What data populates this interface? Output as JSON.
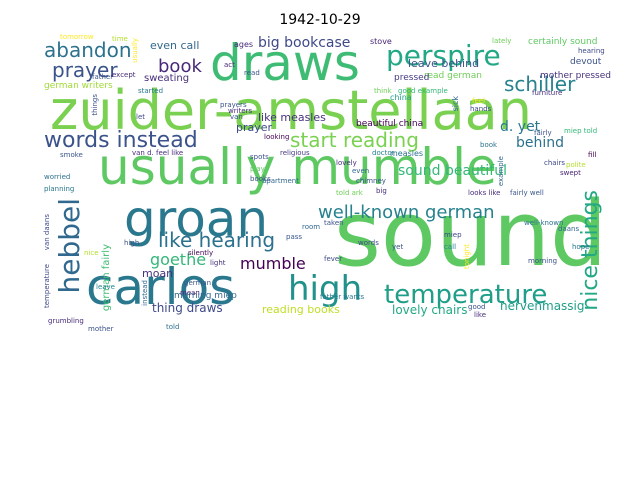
{
  "title": "1942-10-29",
  "words": [
    {
      "text": "sound",
      "color": "#5ec962",
      "vertical": false
    },
    {
      "text": "zuider-amstellaan",
      "color": "#7ad151",
      "vertical": false
    },
    {
      "text": "usually mumble",
      "color": "#5ec962",
      "vertical": false
    },
    {
      "text": "carlos",
      "color": "#2a788e",
      "vertical": false
    },
    {
      "text": "groan",
      "color": "#2a788e",
      "vertical": false
    },
    {
      "text": "draws",
      "color": "#3fbc73",
      "vertical": false
    },
    {
      "text": "high",
      "color": "#21918c",
      "vertical": false
    },
    {
      "text": "temperature",
      "color": "#1f9e89",
      "vertical": false
    },
    {
      "text": "perspire",
      "color": "#22a884",
      "vertical": false
    },
    {
      "text": "words instead",
      "color": "#3b528b",
      "vertical": false
    },
    {
      "text": "hebbel",
      "color": "#31688e",
      "vertical": true
    },
    {
      "text": "start reading",
      "color": "#7ad151",
      "vertical": false
    },
    {
      "text": "well-known german",
      "color": "#26828e",
      "vertical": false
    },
    {
      "text": "like hearing",
      "color": "#2c728e",
      "vertical": false
    },
    {
      "text": "nice things",
      "color": "#22a884",
      "vertical": true
    },
    {
      "text": "abandon",
      "color": "#2c728e",
      "vertical": false
    },
    {
      "text": "prayer",
      "color": "#3b528b",
      "vertical": false
    },
    {
      "text": "book",
      "color": "#482878",
      "vertical": false
    },
    {
      "text": "schiller",
      "color": "#26828e",
      "vertical": false
    },
    {
      "text": "goethe",
      "color": "#35b779",
      "vertical": false
    },
    {
      "text": "mumble",
      "color": "#440154",
      "vertical": false
    },
    {
      "text": "big bookcase",
      "color": "#3e4989",
      "vertical": false
    },
    {
      "text": "sound beautiful",
      "color": "#35b779",
      "vertical": false
    },
    {
      "text": "behind",
      "color": "#2c728e",
      "vertical": false
    },
    {
      "text": "d. yet",
      "color": "#2a788e",
      "vertical": false
    },
    {
      "text": "nervenmassig",
      "color": "#1f9e89",
      "vertical": false
    },
    {
      "text": "lovely chairs",
      "color": "#22a884",
      "vertical": false
    },
    {
      "text": "thing draws",
      "color": "#3e4989",
      "vertical": false
    },
    {
      "text": "reading books",
      "color": "#bddf26",
      "vertical": false
    },
    {
      "text": "even call",
      "color": "#31688e",
      "vertical": false
    },
    {
      "text": "leave behind",
      "color": "#3b528b",
      "vertical": false
    },
    {
      "text": "certainly sound",
      "color": "#5ec962",
      "vertical": false
    },
    {
      "text": "like measles",
      "color": "#46327e",
      "vertical": false
    },
    {
      "text": "moan",
      "color": "#46327e",
      "vertical": false
    },
    {
      "text": "prayer",
      "color": "#3e4989",
      "vertical": false
    },
    {
      "text": "read german",
      "color": "#6ece58",
      "vertical": false
    },
    {
      "text": "german writers",
      "color": "#a0da39",
      "vertical": false
    },
    {
      "text": "sweating",
      "color": "#472d7b",
      "vertical": false
    },
    {
      "text": "beautiful china",
      "color": "#440154",
      "vertical": false
    },
    {
      "text": "german fairly",
      "color": "#3fbc73",
      "vertical": true
    },
    {
      "text": "devout",
      "color": "#3b528b",
      "vertical": false
    },
    {
      "text": "pressed",
      "color": "#443983",
      "vertical": false
    },
    {
      "text": "morning miep",
      "color": "#31688e",
      "vertical": false
    },
    {
      "text": "mother pressed",
      "color": "#46327e",
      "vertical": false
    },
    {
      "text": "stove",
      "color": "#482475",
      "vertical": false
    },
    {
      "text": "ages",
      "color": "#482878",
      "vertical": false
    },
    {
      "text": "lately",
      "color": "#6ece58",
      "vertical": false
    },
    {
      "text": "hearing",
      "color": "#3e4989",
      "vertical": false
    },
    {
      "text": "time",
      "color": "#b5de2b",
      "vertical": false
    },
    {
      "text": "tomorrow",
      "color": "#fde725",
      "vertical": false
    },
    {
      "text": "father",
      "color": "#3b528b",
      "vertical": false
    },
    {
      "text": "except",
      "color": "#472d7b",
      "vertical": false
    },
    {
      "text": "read",
      "color": "#39568c",
      "vertical": false
    },
    {
      "text": "started",
      "color": "#2a788e",
      "vertical": false
    },
    {
      "text": "prayers",
      "color": "#3b528b",
      "vertical": false
    },
    {
      "text": "think",
      "color": "#6ece58",
      "vertical": false
    },
    {
      "text": "good example",
      "color": "#35b779",
      "vertical": false
    },
    {
      "text": "furniture",
      "color": "#472d7b",
      "vertical": false
    },
    {
      "text": "sick",
      "color": "#31688e",
      "vertical": true
    },
    {
      "text": "feel",
      "color": "#fde725",
      "vertical": false
    },
    {
      "text": "hands",
      "color": "#3e4989",
      "vertical": false
    },
    {
      "text": "doctor",
      "color": "#26828e",
      "vertical": false
    },
    {
      "text": "measles",
      "color": "#2c728e",
      "vertical": false
    },
    {
      "text": "china",
      "color": "#1fa187",
      "vertical": false
    },
    {
      "text": "miep told",
      "color": "#35b779",
      "vertical": false
    },
    {
      "text": "fairly",
      "color": "#3b528b",
      "vertical": false
    },
    {
      "text": "religious",
      "color": "#443983",
      "vertical": false
    },
    {
      "text": "van d. feel like",
      "color": "#472d7b",
      "vertical": false
    },
    {
      "text": "spots",
      "color": "#3b528b",
      "vertical": false
    },
    {
      "text": "smoke",
      "color": "#39568c",
      "vertical": false
    },
    {
      "text": "worried",
      "color": "#2c728e",
      "vertical": false
    },
    {
      "text": "planning",
      "color": "#2a788e",
      "vertical": false
    },
    {
      "text": "van daans",
      "color": "#3e4989",
      "vertical": true
    },
    {
      "text": "temperature",
      "color": "#3e4989",
      "vertical": true
    },
    {
      "text": "grumbling",
      "color": "#472d7b",
      "vertical": false
    },
    {
      "text": "mother",
      "color": "#3b528b",
      "vertical": false
    },
    {
      "text": "leave",
      "color": "#26828e",
      "vertical": false
    },
    {
      "text": "instead",
      "color": "#31688e",
      "vertical": true
    },
    {
      "text": "told",
      "color": "#2c728e",
      "vertical": false
    },
    {
      "text": "silently",
      "color": "#440154",
      "vertical": false
    },
    {
      "text": "light",
      "color": "#46327e",
      "vertical": false
    },
    {
      "text": "apartment",
      "color": "#31688e",
      "vertical": false
    },
    {
      "text": "books",
      "color": "#3b528b",
      "vertical": false
    },
    {
      "text": "fever",
      "color": "#3e4989",
      "vertical": false
    },
    {
      "text": "even",
      "color": "#31688e",
      "vertical": false
    },
    {
      "text": "chimney",
      "color": "#3b528b",
      "vertical": false
    },
    {
      "text": "lovely",
      "color": "#472d7b",
      "vertical": false
    },
    {
      "text": "pass",
      "color": "#39568c",
      "vertical": false
    },
    {
      "text": "father wants",
      "color": "#2a788e",
      "vertical": false
    },
    {
      "text": "taken",
      "color": "#3b528b",
      "vertical": false
    },
    {
      "text": "room",
      "color": "#31688e",
      "vertical": false
    },
    {
      "text": "words",
      "color": "#3e4989",
      "vertical": false
    },
    {
      "text": "looks like",
      "color": "#472d7b",
      "vertical": false
    },
    {
      "text": "fairly well",
      "color": "#39568c",
      "vertical": false
    },
    {
      "text": "big",
      "color": "#472d7b",
      "vertical": false
    },
    {
      "text": "yet",
      "color": "#3b528b",
      "vertical": false
    },
    {
      "text": "call",
      "color": "#26828e",
      "vertical": false
    },
    {
      "text": "miep",
      "color": "#3e4989",
      "vertical": false
    },
    {
      "text": "chairs",
      "color": "#3e4989",
      "vertical": false
    },
    {
      "text": "swept",
      "color": "#482475",
      "vertical": false
    },
    {
      "text": "polite",
      "color": "#b5de2b",
      "vertical": false
    },
    {
      "text": "daans",
      "color": "#31688e",
      "vertical": false
    },
    {
      "text": "hope",
      "color": "#2a788e",
      "vertical": false
    },
    {
      "text": "morning",
      "color": "#3b528b",
      "vertical": false
    },
    {
      "text": "well-known",
      "color": "#2c728e",
      "vertical": false
    },
    {
      "text": "good",
      "color": "#3b528b",
      "vertical": false
    },
    {
      "text": "like",
      "color": "#472d7b",
      "vertical": false
    },
    {
      "text": "high",
      "color": "#3b528b",
      "vertical": false
    },
    {
      "text": "german",
      "color": "#39568c",
      "vertical": false
    },
    {
      "text": "mean",
      "color": "#472d7b",
      "vertical": false
    },
    {
      "text": "nice",
      "color": "#b5de2b",
      "vertical": false
    },
    {
      "text": "example",
      "color": "#31688e",
      "vertical": true
    },
    {
      "text": "fill",
      "color": "#440154",
      "vertical": false
    },
    {
      "text": "book",
      "color": "#2c728e",
      "vertical": false
    },
    {
      "text": "tonight",
      "color": "#fde725",
      "vertical": true
    },
    {
      "text": "told ark",
      "color": "#6ece58",
      "vertical": false
    },
    {
      "text": "writers",
      "color": "#472d7b",
      "vertical": false
    },
    {
      "text": "act",
      "color": "#482878",
      "vertical": false
    },
    {
      "text": "things",
      "color": "#3b528b",
      "vertical": true
    },
    {
      "text": "let",
      "color": "#3e4989",
      "vertical": false
    },
    {
      "text": "van",
      "color": "#3b528b",
      "vertical": false
    },
    {
      "text": "usually",
      "color": "#fde725",
      "vertical": true
    },
    {
      "text": "looking",
      "color": "#440154",
      "vertical": false
    },
    {
      "text": "plays",
      "color": "#5ec962",
      "vertical": false
    }
  ]
}
